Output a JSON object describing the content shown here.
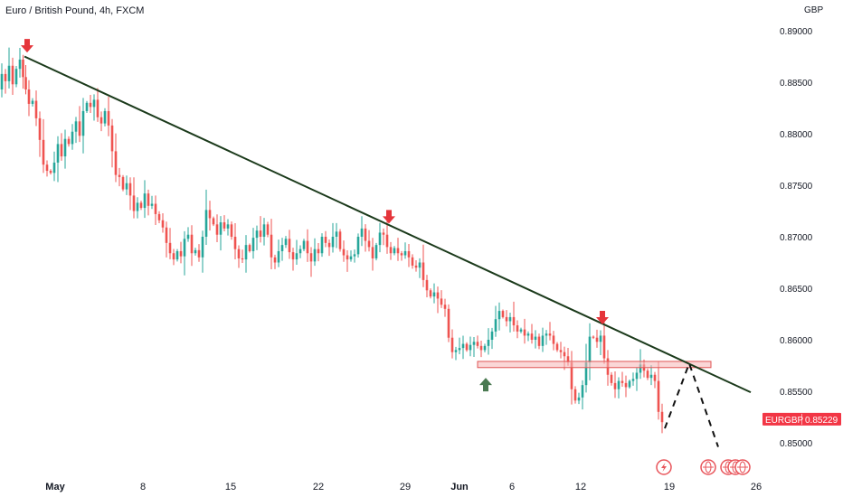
{
  "header": {
    "title": "Euro / British Pound, 4h, FXCM",
    "currency": "GBP"
  },
  "colors": {
    "up": "#26a69a",
    "down": "#ef5350",
    "trendline": "#1b3a1b",
    "zone_fill": "#f5b7b7",
    "zone_stroke": "#e05555",
    "arrow_down": "#e5353b",
    "arrow_up": "#4a7a52",
    "price_label": "#f23645",
    "event_icon": "#e8545a"
  },
  "chart_data": {
    "type": "candlestick",
    "symbol": "EURGBP",
    "last_price": "0.85229",
    "ylim": [
      0.846,
      0.8915
    ],
    "y_ticks": [
      "0.89000",
      "0.88500",
      "0.88000",
      "0.87500",
      "0.87000",
      "0.86500",
      "0.86000",
      "0.85500",
      "0.85000"
    ],
    "x_ticks": [
      {
        "label": "May",
        "major": true
      },
      {
        "label": "8",
        "major": false
      },
      {
        "label": "15",
        "major": false
      },
      {
        "label": "22",
        "major": false
      },
      {
        "label": "29",
        "major": false
      },
      {
        "label": "Jun",
        "major": true
      },
      {
        "label": "6",
        "major": false
      },
      {
        "label": "12",
        "major": false
      },
      {
        "label": "19",
        "major": false
      },
      {
        "label": "26",
        "major": false
      }
    ],
    "price_path": [
      [
        0,
        0.8843
      ],
      [
        4,
        0.8858
      ],
      [
        8,
        0.8851
      ],
      [
        12,
        0.8866
      ],
      [
        16,
        0.8848
      ],
      [
        20,
        0.8863
      ],
      [
        24,
        0.8872
      ],
      [
        27,
        0.8855
      ],
      [
        30,
        0.8843
      ],
      [
        34,
        0.8829
      ],
      [
        38,
        0.8832
      ],
      [
        42,
        0.8815
      ],
      [
        46,
        0.8794
      ],
      [
        50,
        0.877
      ],
      [
        54,
        0.8764
      ],
      [
        58,
        0.8762
      ],
      [
        62,
        0.8772
      ],
      [
        66,
        0.879
      ],
      [
        70,
        0.8778
      ],
      [
        74,
        0.8795
      ],
      [
        78,
        0.879
      ],
      [
        82,
        0.8802
      ],
      [
        86,
        0.8812
      ],
      [
        90,
        0.8798
      ],
      [
        94,
        0.8822
      ],
      [
        98,
        0.883
      ],
      [
        102,
        0.8826
      ],
      [
        106,
        0.8833
      ],
      [
        110,
        0.8816
      ],
      [
        114,
        0.881
      ],
      [
        118,
        0.8822
      ],
      [
        122,
        0.8808
      ],
      [
        126,
        0.8783
      ],
      [
        130,
        0.876
      ],
      [
        134,
        0.8758
      ],
      [
        138,
        0.8746
      ],
      [
        142,
        0.8752
      ],
      [
        146,
        0.874
      ],
      [
        150,
        0.8725
      ],
      [
        154,
        0.8733
      ],
      [
        158,
        0.8728
      ],
      [
        162,
        0.8742
      ],
      [
        166,
        0.873
      ],
      [
        170,
        0.8732
      ],
      [
        174,
        0.8722
      ],
      [
        178,
        0.8716
      ],
      [
        182,
        0.8709
      ],
      [
        186,
        0.8694
      ],
      [
        190,
        0.8684
      ],
      [
        194,
        0.8678
      ],
      [
        198,
        0.8686
      ],
      [
        202,
        0.8681
      ],
      [
        206,
        0.8698
      ],
      [
        210,
        0.8702
      ],
      [
        214,
        0.8684
      ],
      [
        218,
        0.8687
      ],
      [
        222,
        0.868
      ],
      [
        226,
        0.87
      ],
      [
        230,
        0.8726
      ],
      [
        234,
        0.8718
      ],
      [
        238,
        0.8712
      ],
      [
        242,
        0.8702
      ],
      [
        246,
        0.8714
      ],
      [
        250,
        0.8708
      ],
      [
        254,
        0.8712
      ],
      [
        258,
        0.87
      ],
      [
        262,
        0.8688
      ],
      [
        266,
        0.8679
      ],
      [
        270,
        0.8678
      ],
      [
        274,
        0.8692
      ],
      [
        278,
        0.8686
      ],
      [
        282,
        0.8699
      ],
      [
        286,
        0.8706
      ],
      [
        290,
        0.87
      ],
      [
        294,
        0.8712
      ],
      [
        298,
        0.8702
      ],
      [
        302,
        0.868
      ],
      [
        306,
        0.8675
      ],
      [
        310,
        0.8686
      ],
      [
        314,
        0.8692
      ],
      [
        318,
        0.8698
      ],
      [
        322,
        0.8685
      ],
      [
        326,
        0.8678
      ],
      [
        330,
        0.8684
      ],
      [
        334,
        0.8688
      ],
      [
        338,
        0.8696
      ],
      [
        342,
        0.8684
      ],
      [
        346,
        0.8676
      ],
      [
        350,
        0.8688
      ],
      [
        354,
        0.8684
      ],
      [
        358,
        0.87
      ],
      [
        362,
        0.8694
      ],
      [
        366,
        0.869
      ],
      [
        370,
        0.87
      ],
      [
        374,
        0.8705
      ],
      [
        378,
        0.8688
      ],
      [
        382,
        0.8682
      ],
      [
        386,
        0.8678
      ],
      [
        390,
        0.8681
      ],
      [
        394,
        0.8683
      ],
      [
        398,
        0.87
      ],
      [
        402,
        0.8708
      ],
      [
        406,
        0.8696
      ],
      [
        410,
        0.869
      ],
      [
        414,
        0.8679
      ],
      [
        418,
        0.8692
      ],
      [
        422,
        0.8704
      ],
      [
        426,
        0.8702
      ],
      [
        430,
        0.869
      ],
      [
        434,
        0.8684
      ],
      [
        438,
        0.8689
      ],
      [
        442,
        0.8684
      ],
      [
        446,
        0.8682
      ],
      [
        450,
        0.8686
      ],
      [
        454,
        0.868
      ],
      [
        458,
        0.8672
      ],
      [
        462,
        0.867
      ],
      [
        466,
        0.8675
      ],
      [
        470,
        0.8658
      ],
      [
        474,
        0.8648
      ],
      [
        478,
        0.8642
      ],
      [
        482,
        0.8646
      ],
      [
        486,
        0.864
      ],
      [
        490,
        0.8634
      ],
      [
        494,
        0.863
      ],
      [
        498,
        0.8602
      ],
      [
        502,
        0.8588
      ],
      [
        506,
        0.859
      ],
      [
        510,
        0.8592
      ],
      [
        514,
        0.8596
      ],
      [
        518,
        0.859
      ],
      [
        522,
        0.8595
      ],
      [
        526,
        0.8598
      ],
      [
        530,
        0.8594
      ],
      [
        534,
        0.859
      ],
      [
        538,
        0.8594
      ],
      [
        542,
        0.86
      ],
      [
        546,
        0.8608
      ],
      [
        550,
        0.862
      ],
      [
        554,
        0.8628
      ],
      [
        558,
        0.8622
      ],
      [
        562,
        0.8618
      ],
      [
        566,
        0.8622
      ],
      [
        570,
        0.8614
      ],
      [
        574,
        0.8608
      ],
      [
        578,
        0.861
      ],
      [
        582,
        0.8604
      ],
      [
        586,
        0.8606
      ],
      [
        590,
        0.86
      ],
      [
        594,
        0.8603
      ],
      [
        598,
        0.8594
      ],
      [
        602,
        0.8604
      ],
      [
        606,
        0.8606
      ],
      [
        610,
        0.8604
      ],
      [
        614,
        0.8596
      ],
      [
        618,
        0.859
      ],
      [
        622,
        0.8588
      ],
      [
        626,
        0.8584
      ],
      [
        630,
        0.8578
      ],
      [
        634,
        0.8552
      ],
      [
        638,
        0.8541
      ],
      [
        642,
        0.8544
      ],
      [
        646,
        0.8556
      ],
      [
        650,
        0.8578
      ],
      [
        654,
        0.8603
      ],
      [
        658,
        0.8602
      ],
      [
        662,
        0.8598
      ],
      [
        666,
        0.8604
      ],
      [
        670,
        0.8582
      ],
      [
        674,
        0.8566
      ],
      [
        678,
        0.8558
      ],
      [
        682,
        0.8552
      ],
      [
        686,
        0.856
      ],
      [
        690,
        0.8558
      ],
      [
        694,
        0.8554
      ],
      [
        698,
        0.856
      ],
      [
        702,
        0.8562
      ],
      [
        706,
        0.8568
      ],
      [
        710,
        0.8576
      ],
      [
        714,
        0.857
      ],
      [
        718,
        0.8563
      ],
      [
        722,
        0.8566
      ],
      [
        726,
        0.856
      ],
      [
        730,
        0.853
      ],
      [
        734,
        0.852
      ]
    ],
    "annotations": {
      "trendline": [
        [
          27,
          0.8875
        ],
        [
          830,
          0.8549
        ]
      ],
      "support_zone": {
        "x": [
          528,
          786
        ],
        "y": [
          0.8579,
          0.8573
        ]
      },
      "projection": [
        [
          735,
          0.8514
        ],
        [
          762,
          0.8577
        ],
        [
          794,
          0.8496
        ]
      ],
      "arrows_down": [
        [
          30,
          0.8878
        ],
        [
          430,
          0.8712
        ],
        [
          666,
          0.8614
        ]
      ],
      "arrows_up": [
        [
          537,
          0.8563
        ]
      ],
      "event_icons": [
        [
          734,
          "lightning"
        ],
        [
          783,
          "globe"
        ],
        [
          805,
          "globe"
        ],
        [
          813,
          "globe"
        ],
        [
          821,
          "globe"
        ]
      ]
    }
  }
}
